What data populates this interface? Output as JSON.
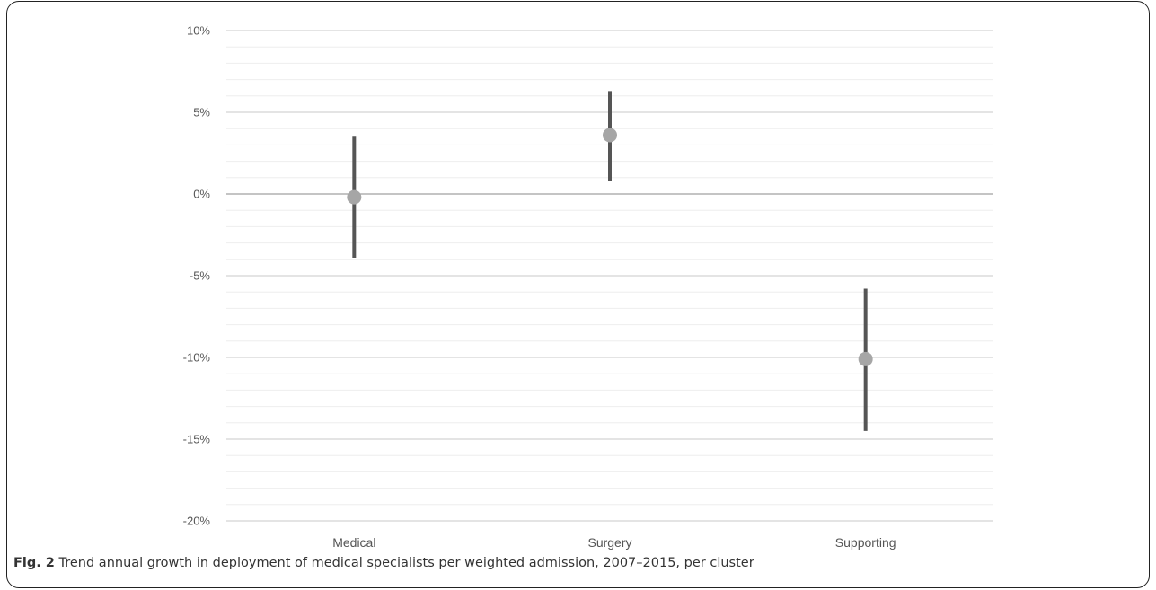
{
  "caption": {
    "label": "Fig. 2",
    "text": "Trend annual growth in deployment of medical specialists per weighted admission, 2007–2015, per cluster"
  },
  "chart_data": {
    "type": "scatter",
    "title": "",
    "xlabel": "",
    "ylabel": "",
    "categories": [
      "Medical",
      "Surgery",
      "Supporting"
    ],
    "values": [
      -0.2,
      3.6,
      -10.1
    ],
    "lower": [
      -3.9,
      0.8,
      -14.5
    ],
    "upper": [
      3.5,
      6.3,
      -5.8
    ],
    "ylim": [
      -20,
      10
    ],
    "yticks": [
      10,
      5,
      0,
      -5,
      -10,
      -15,
      -20
    ],
    "ytick_labels": [
      "10%",
      "5%",
      "0%",
      "-5%",
      "-10%",
      "-15%",
      "-20%"
    ],
    "minor_gridlines": true,
    "colors": {
      "interval": "#555555",
      "point": "#a6a6a6",
      "grid_major": "#d4d4d4",
      "grid_minor": "#eeeeee",
      "zero_line": "#a0a0a0"
    }
  }
}
